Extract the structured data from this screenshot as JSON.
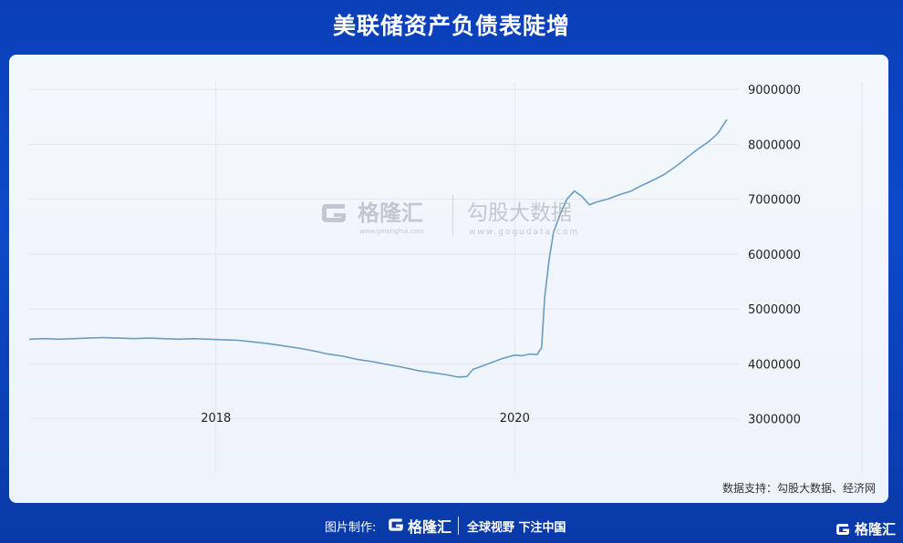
{
  "title": "美联储资产负债表陡增",
  "source": "数据支持：勾股大数据、经济网",
  "watermark": {
    "brand_cn": "格隆汇",
    "brand_en": "www.gelonghui.com",
    "data_cn": "勾股大数据",
    "data_en": "www.gogudata.com"
  },
  "footer": {
    "label": "图片制作:",
    "brand": "格隆汇",
    "slogan": "全球视野 下注中国"
  },
  "corner_brand": "格隆汇",
  "colors": {
    "line": "#6b9dc2",
    "background": "#0d49c9",
    "panel": "#f0f6fc",
    "grid": "#e1e8f0"
  },
  "chart_data": {
    "type": "line",
    "title": "美联储资产负债表陡增",
    "xlabel": "",
    "ylabel": "",
    "x_ticks": [
      "2018",
      "2020"
    ],
    "y_ticks": [
      "3000000",
      "4000000",
      "5000000",
      "6000000",
      "7000000",
      "8000000",
      "9000000"
    ],
    "xlim": [
      2016.75,
      2021.5
    ],
    "ylim": [
      2000000,
      9300000
    ],
    "grid": true,
    "series": [
      {
        "values_x": [
          2016.75,
          2016.85,
          2016.95,
          2017.05,
          2017.15,
          2017.25,
          2017.35,
          2017.45,
          2017.55,
          2017.65,
          2017.75,
          2017.85,
          2017.95,
          2018.05,
          2018.15,
          2018.25,
          2018.35,
          2018.45,
          2018.55,
          2018.65,
          2018.75,
          2018.85,
          2018.95,
          2019.05,
          2019.15,
          2019.25,
          2019.35,
          2019.45,
          2019.55,
          2019.62,
          2019.68,
          2019.72,
          2019.78,
          2019.85,
          2019.92,
          2020.0,
          2020.05,
          2020.1,
          2020.15,
          2020.18,
          2020.2,
          2020.23,
          2020.26,
          2020.3,
          2020.35,
          2020.4,
          2020.45,
          2020.5,
          2020.55,
          2020.62,
          2020.7,
          2020.78,
          2020.85,
          2020.93,
          2021.0,
          2021.08,
          2021.15,
          2021.22,
          2021.3,
          2021.36,
          2021.42
        ],
        "values_y": [
          4450000,
          4460000,
          4450000,
          4460000,
          4470000,
          4480000,
          4470000,
          4460000,
          4470000,
          4460000,
          4450000,
          4460000,
          4450000,
          4440000,
          4430000,
          4400000,
          4370000,
          4330000,
          4290000,
          4240000,
          4180000,
          4140000,
          4080000,
          4040000,
          3990000,
          3940000,
          3880000,
          3840000,
          3800000,
          3760000,
          3770000,
          3900000,
          3960000,
          4030000,
          4100000,
          4160000,
          4150000,
          4180000,
          4170000,
          4300000,
          5200000,
          5900000,
          6400000,
          6700000,
          7000000,
          7150000,
          7050000,
          6900000,
          6950000,
          7000000,
          7080000,
          7150000,
          7250000,
          7350000,
          7450000,
          7600000,
          7750000,
          7900000,
          8050000,
          8200000,
          8450000
        ]
      }
    ]
  }
}
